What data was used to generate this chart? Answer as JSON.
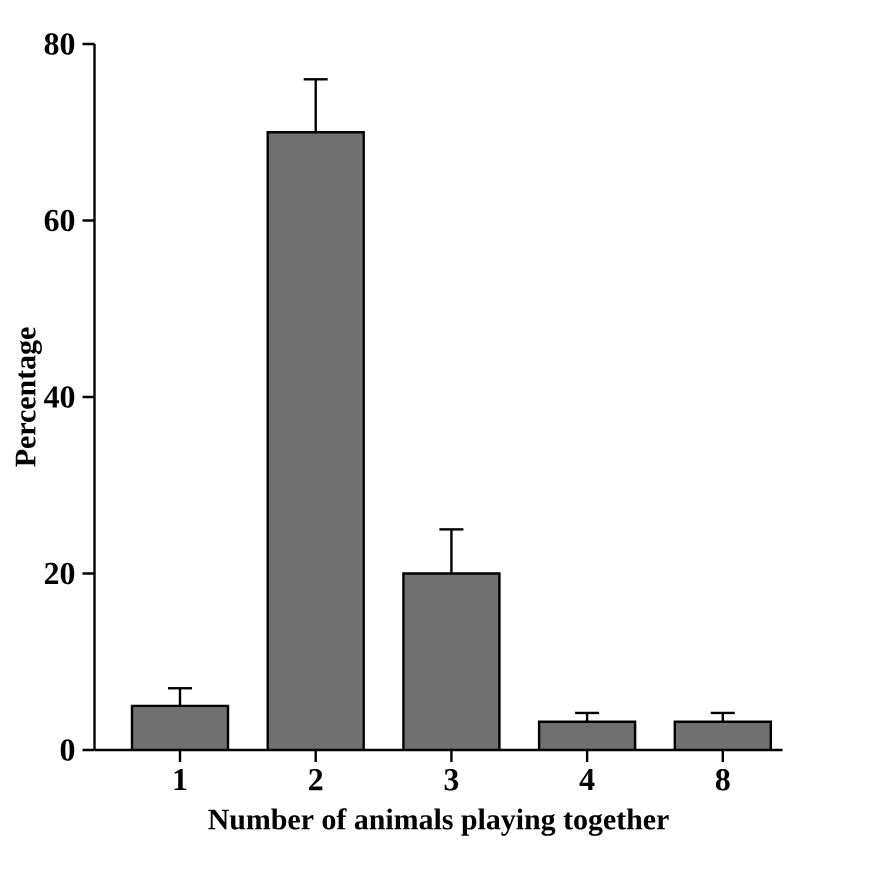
{
  "chart_data": {
    "type": "bar",
    "xlabel": "Number of animals playing together",
    "ylabel": "Percentage",
    "categories": [
      "1",
      "2",
      "3",
      "4",
      "8"
    ],
    "values": [
      5,
      70,
      20,
      3.2,
      3.2
    ],
    "errors": [
      [
        5,
        7
      ],
      [
        70,
        76
      ],
      [
        20,
        25
      ],
      [
        3.2,
        4.2
      ],
      [
        3.2,
        4.2
      ]
    ],
    "color": "#707070",
    "ylim": [
      0,
      80
    ],
    "yticks": [
      0,
      20,
      40,
      60,
      80
    ],
    "grid": false
  }
}
